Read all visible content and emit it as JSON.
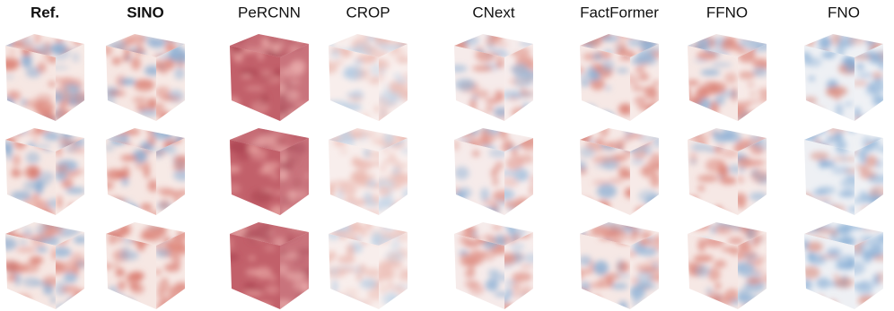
{
  "columns": [
    "Ref.",
    "SINO",
    "PeRCNN",
    "CROP",
    "CNext",
    "FactFormer",
    "FFNO",
    "FNO"
  ]
}
